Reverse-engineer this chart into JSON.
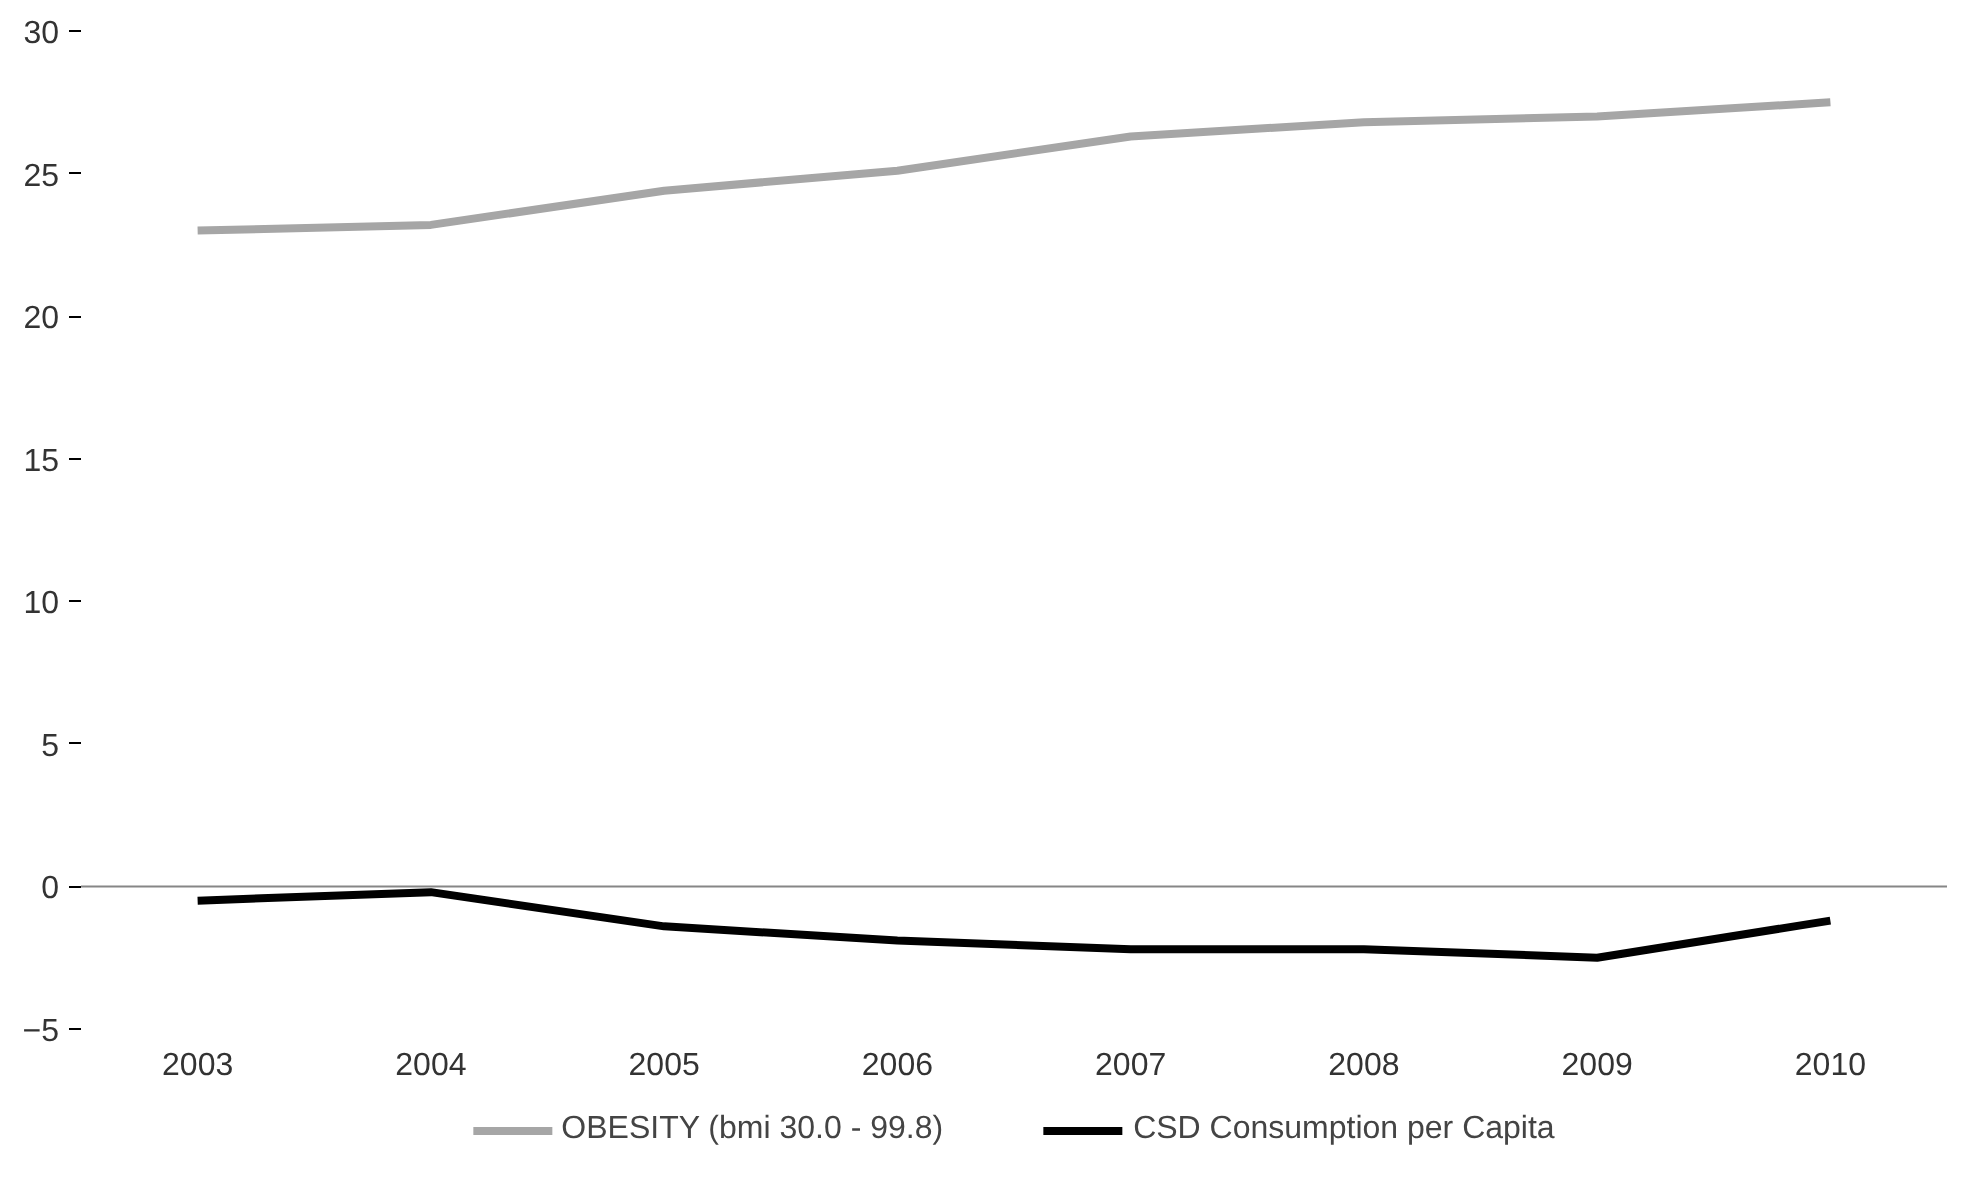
{
  "chart_data": {
    "type": "line",
    "categories": [
      "2003",
      "2004",
      "2005",
      "2006",
      "2007",
      "2008",
      "2009",
      "2010"
    ],
    "series": [
      {
        "name": "OBESITY (bmi 30.0 - 99.8)",
        "color": "#a6a6a6",
        "values": [
          23.0,
          23.2,
          24.4,
          25.1,
          26.3,
          26.8,
          27.0,
          27.5
        ]
      },
      {
        "name": "CSD Consumption per Capita",
        "color": "#000000",
        "values": [
          -0.5,
          -0.2,
          -1.4,
          -1.9,
          -2.2,
          -2.2,
          -2.5,
          -1.2
        ]
      }
    ],
    "ylim": [
      -5,
      30
    ],
    "yticks": [
      -5,
      0,
      5,
      10,
      15,
      20,
      25,
      30
    ],
    "ref_lines": [
      {
        "axis": "y",
        "value": 0,
        "color": "#868686"
      }
    ],
    "grid": false,
    "legend": "bottom",
    "marker": "none",
    "line_style": "solid"
  }
}
